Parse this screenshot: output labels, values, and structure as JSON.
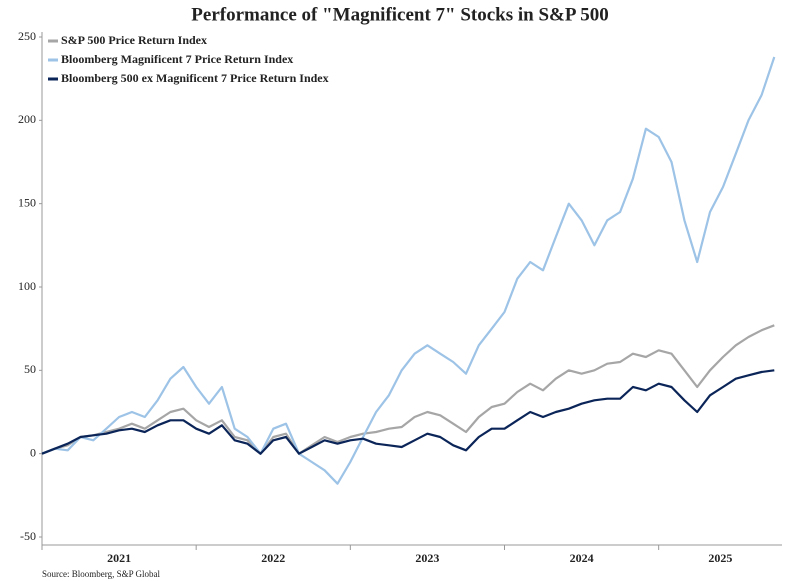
{
  "chart_data": {
    "type": "line",
    "title": "Performance of \"Magnificent 7\" Stocks in S&P 500",
    "source": "Source: Bloomberg, S&P Global",
    "x": [
      2021,
      2021.083,
      2021.167,
      2021.25,
      2021.333,
      2021.417,
      2021.5,
      2021.583,
      2021.667,
      2021.75,
      2021.833,
      2021.917,
      2022,
      2022.083,
      2022.167,
      2022.25,
      2022.333,
      2022.417,
      2022.5,
      2022.583,
      2022.667,
      2022.75,
      2022.833,
      2022.917,
      2023,
      2023.083,
      2023.167,
      2023.25,
      2023.333,
      2023.417,
      2023.5,
      2023.583,
      2023.667,
      2023.75,
      2023.833,
      2023.917,
      2024,
      2024.083,
      2024.167,
      2024.25,
      2024.333,
      2024.417,
      2024.5,
      2024.583,
      2024.667,
      2024.75,
      2024.833,
      2024.917,
      2025,
      2025.083,
      2025.167,
      2025.25,
      2025.333,
      2025.417,
      2025.5,
      2025.583,
      2025.667,
      2025.75
    ],
    "series": [
      {
        "name": "S&P 500 Price Return Index",
        "color": "#a6a6a6",
        "values": [
          0,
          3,
          5,
          10,
          11,
          13,
          15,
          18,
          15,
          20,
          25,
          27,
          20,
          16,
          20,
          10,
          8,
          0,
          10,
          12,
          0,
          5,
          10,
          7,
          10,
          12,
          13,
          15,
          16,
          22,
          25,
          23,
          18,
          13,
          22,
          28,
          30,
          37,
          42,
          38,
          45,
          50,
          48,
          50,
          54,
          55,
          60,
          58,
          62,
          60,
          50,
          40,
          50,
          58,
          65,
          70,
          74,
          77
        ]
      },
      {
        "name": "Bloomberg Magnificent 7 Price Return Index",
        "color": "#9dc3e6",
        "values": [
          0,
          3,
          2,
          10,
          8,
          15,
          22,
          25,
          22,
          32,
          45,
          52,
          40,
          30,
          40,
          15,
          10,
          0,
          15,
          18,
          0,
          -5,
          -10,
          -18,
          -5,
          10,
          25,
          35,
          50,
          60,
          65,
          60,
          55,
          48,
          65,
          75,
          85,
          105,
          115,
          110,
          130,
          150,
          140,
          125,
          140,
          145,
          165,
          195,
          190,
          175,
          140,
          115,
          145,
          160,
          180,
          200,
          215,
          238
        ]
      },
      {
        "name": "Bloomberg 500 ex Magnificent 7 Price Return Index",
        "color": "#0b2559",
        "values": [
          0,
          3,
          6,
          10,
          11,
          12,
          14,
          15,
          13,
          17,
          20,
          20,
          15,
          12,
          17,
          8,
          6,
          0,
          8,
          10,
          0,
          4,
          8,
          6,
          8,
          9,
          6,
          5,
          4,
          8,
          12,
          10,
          5,
          2,
          10,
          15,
          15,
          20,
          25,
          22,
          25,
          27,
          30,
          32,
          33,
          33,
          40,
          38,
          42,
          40,
          32,
          25,
          35,
          40,
          45,
          47,
          49,
          50
        ]
      }
    ],
    "xlim": [
      2021,
      2025.8
    ],
    "xticks": [
      2021,
      2022,
      2023,
      2024,
      2025
    ],
    "ylim": [
      -50,
      250
    ],
    "yticks": [
      -50,
      0,
      50,
      100,
      150,
      200,
      250
    ],
    "legend": "upper left",
    "grid": false
  }
}
